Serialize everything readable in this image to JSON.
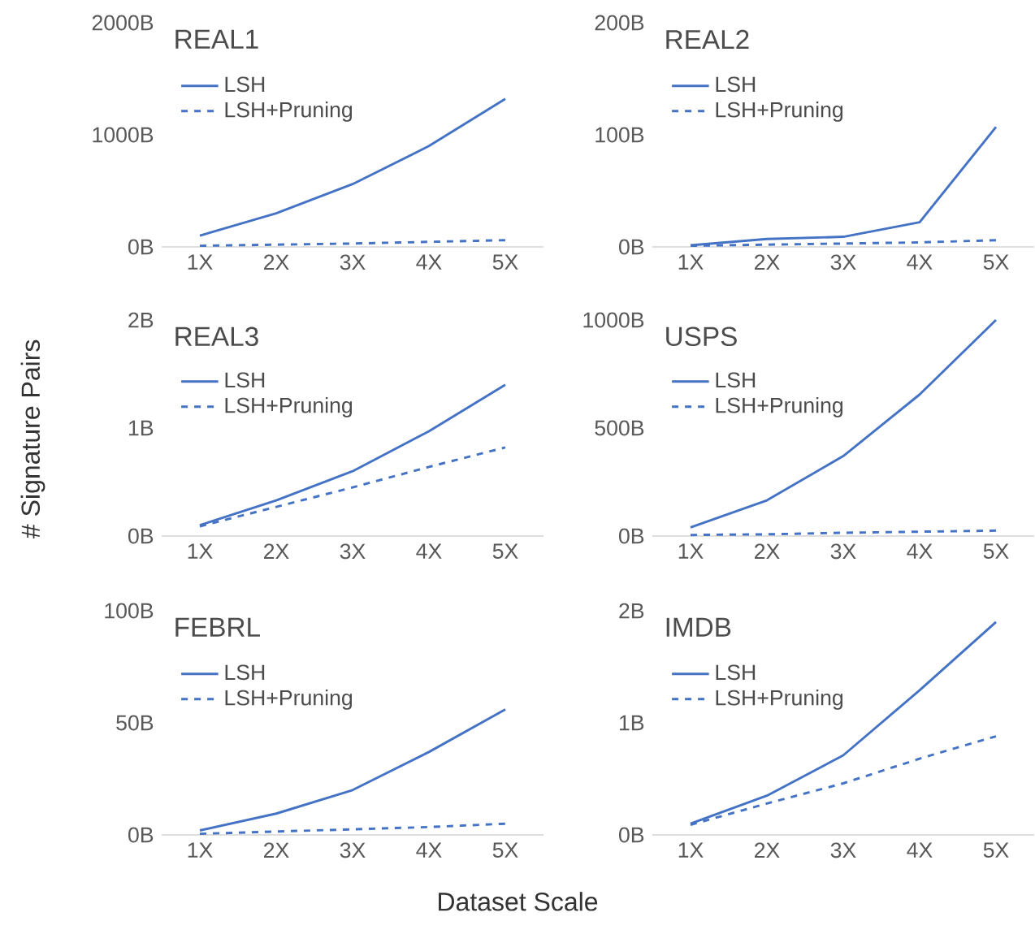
{
  "chart_data": [
    {
      "type": "line",
      "title": "REAL1",
      "categories": [
        "1X",
        "2X",
        "3X",
        "4X",
        "5X"
      ],
      "ylim": [
        0,
        2000
      ],
      "yticks": [
        {
          "value": 0,
          "label": "0B"
        },
        {
          "value": 1000,
          "label": "1000B"
        },
        {
          "value": 2000,
          "label": "2000B"
        }
      ],
      "legend": "top left",
      "series": [
        {
          "name": "LSH",
          "color": "#4472c4",
          "line_style": "solid",
          "values": [
            100,
            300,
            560,
            900,
            1320
          ]
        },
        {
          "name": "LSH+Pruning",
          "color": "#4472c4",
          "line_style": "dashed",
          "values": [
            10,
            20,
            30,
            45,
            60
          ]
        }
      ]
    },
    {
      "type": "line",
      "title": "REAL2",
      "categories": [
        "1X",
        "2X",
        "3X",
        "4X",
        "5X"
      ],
      "ylim": [
        0,
        200
      ],
      "yticks": [
        {
          "value": 0,
          "label": "0B"
        },
        {
          "value": 100,
          "label": "100B"
        },
        {
          "value": 200,
          "label": "200B"
        }
      ],
      "legend": "top left",
      "series": [
        {
          "name": "LSH",
          "color": "#4472c4",
          "line_style": "solid",
          "values": [
            1.5,
            7,
            9,
            22,
            107
          ]
        },
        {
          "name": "LSH+Pruning",
          "color": "#4472c4",
          "line_style": "dashed",
          "values": [
            1,
            2,
            3,
            4,
            6
          ]
        }
      ]
    },
    {
      "type": "line",
      "title": "REAL3",
      "ylabel": "# Signature Pairs",
      "categories": [
        "1X",
        "2X",
        "3X",
        "4X",
        "5X"
      ],
      "ylim": [
        0,
        2
      ],
      "yticks": [
        {
          "value": 0,
          "label": "0B"
        },
        {
          "value": 1,
          "label": "1B"
        },
        {
          "value": 2,
          "label": "2B"
        }
      ],
      "legend": "top left",
      "series": [
        {
          "name": "LSH",
          "color": "#4472c4",
          "line_style": "solid",
          "values": [
            0.1,
            0.33,
            0.6,
            0.97,
            1.4
          ]
        },
        {
          "name": "LSH+Pruning",
          "color": "#4472c4",
          "line_style": "dashed",
          "values": [
            0.09,
            0.27,
            0.45,
            0.64,
            0.82
          ]
        }
      ]
    },
    {
      "type": "line",
      "title": "USPS",
      "categories": [
        "1X",
        "2X",
        "3X",
        "4X",
        "5X"
      ],
      "ylim": [
        0,
        1000
      ],
      "yticks": [
        {
          "value": 0,
          "label": "0B"
        },
        {
          "value": 500,
          "label": "500B"
        },
        {
          "value": 1000,
          "label": "1000B"
        }
      ],
      "legend": "top left",
      "series": [
        {
          "name": "LSH",
          "color": "#4472c4",
          "line_style": "solid",
          "values": [
            40,
            165,
            370,
            655,
            1000
          ]
        },
        {
          "name": "LSH+Pruning",
          "color": "#4472c4",
          "line_style": "dashed",
          "values": [
            5,
            8,
            15,
            20,
            25
          ]
        }
      ]
    },
    {
      "type": "line",
      "title": "FEBRL",
      "xlabel": "Dataset Scale",
      "categories": [
        "1X",
        "2X",
        "3X",
        "4X",
        "5X"
      ],
      "ylim": [
        0,
        100
      ],
      "yticks": [
        {
          "value": 0,
          "label": "0B"
        },
        {
          "value": 50,
          "label": "50B"
        },
        {
          "value": 100,
          "label": "100B"
        }
      ],
      "legend": "top left",
      "series": [
        {
          "name": "LSH",
          "color": "#4472c4",
          "line_style": "solid",
          "values": [
            2,
            9.5,
            20,
            37,
            56
          ]
        },
        {
          "name": "LSH+Pruning",
          "color": "#4472c4",
          "line_style": "dashed",
          "values": [
            0.5,
            1.5,
            2.5,
            3.5,
            5
          ]
        }
      ]
    },
    {
      "type": "line",
      "title": "IMDB",
      "categories": [
        "1X",
        "2X",
        "3X",
        "4X",
        "5X"
      ],
      "ylim": [
        0,
        2
      ],
      "yticks": [
        {
          "value": 0,
          "label": "0B"
        },
        {
          "value": 1,
          "label": "1B"
        },
        {
          "value": 2,
          "label": "2B"
        }
      ],
      "legend": "top left",
      "series": [
        {
          "name": "LSH",
          "color": "#4472c4",
          "line_style": "solid",
          "values": [
            0.1,
            0.35,
            0.71,
            1.29,
            1.9
          ]
        },
        {
          "name": "LSH+Pruning",
          "color": "#4472c4",
          "line_style": "dashed",
          "values": [
            0.09,
            0.28,
            0.46,
            0.68,
            0.88
          ]
        }
      ]
    }
  ]
}
